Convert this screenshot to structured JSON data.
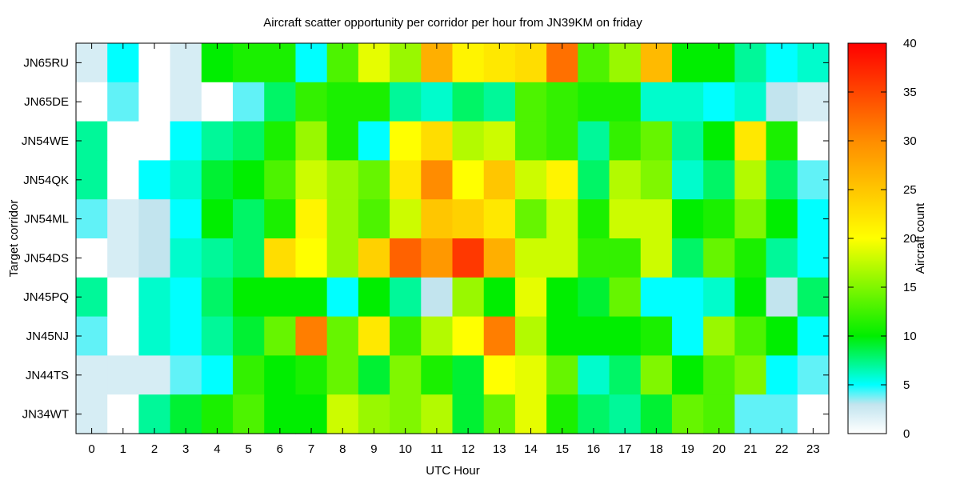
{
  "chart_data": {
    "type": "heatmap",
    "title": "Aircraft scatter opportunity per corridor per hour from JN39KM on friday",
    "xlabel": "UTC Hour",
    "ylabel": "Target corridor",
    "colorbar_label": "Aircraft count",
    "x": [
      "0",
      "1",
      "2",
      "3",
      "4",
      "5",
      "6",
      "7",
      "8",
      "9",
      "10",
      "11",
      "12",
      "13",
      "14",
      "15",
      "16",
      "17",
      "18",
      "19",
      "20",
      "21",
      "22",
      "23"
    ],
    "y": [
      "JN65RU",
      "JN65DE",
      "JN54WE",
      "JN54QK",
      "JN54ML",
      "JN54DS",
      "JN45PQ",
      "JN45NJ",
      "JN44TS",
      "JN34WT"
    ],
    "zlim": [
      0,
      40
    ],
    "colorbar_ticks": [
      0,
      5,
      10,
      15,
      20,
      25,
      30,
      35,
      40
    ],
    "color_stops": [
      {
        "v": 0,
        "c": "#ffffff"
      },
      {
        "v": 3,
        "c": "#c2e4ee"
      },
      {
        "v": 5,
        "c": "#00ffff"
      },
      {
        "v": 10,
        "c": "#00ee00"
      },
      {
        "v": 20,
        "c": "#ffff00"
      },
      {
        "v": 30,
        "c": "#ff8c00"
      },
      {
        "v": 40,
        "c": "#ff0000"
      }
    ],
    "values": [
      [
        2,
        5,
        0,
        2,
        10,
        11,
        11,
        5,
        13,
        19,
        16,
        27,
        21,
        22,
        23,
        32,
        13,
        16,
        26,
        10,
        10,
        7,
        5,
        6
      ],
      [
        0,
        4,
        0,
        2,
        0,
        4,
        8,
        12,
        11,
        11,
        7,
        6,
        8,
        7,
        13,
        12,
        11,
        11,
        6,
        6,
        5,
        6,
        3,
        2
      ],
      [
        7,
        0,
        0,
        5,
        7,
        8,
        11,
        16,
        11,
        5,
        20,
        23,
        17,
        18,
        13,
        12,
        7,
        12,
        14,
        7,
        10,
        22,
        11,
        0
      ],
      [
        7,
        0,
        5,
        6,
        9,
        10,
        13,
        18,
        16,
        14,
        22,
        30,
        20,
        25,
        18,
        21,
        8,
        17,
        15,
        6,
        8,
        17,
        8,
        4
      ],
      [
        4,
        2,
        3,
        5,
        10,
        8,
        11,
        21,
        16,
        13,
        18,
        25,
        24,
        22,
        14,
        18,
        11,
        18,
        18,
        10,
        11,
        15,
        10,
        5
      ],
      [
        0,
        2,
        3,
        6,
        7,
        8,
        23,
        20,
        16,
        24,
        33,
        29,
        36,
        27,
        18,
        18,
        12,
        12,
        18,
        8,
        14,
        11,
        7,
        5
      ],
      [
        7,
        0,
        6,
        5,
        8,
        10,
        10,
        10,
        5,
        10,
        7,
        3,
        16,
        10,
        19,
        10,
        9,
        14,
        5,
        5,
        6,
        10,
        3,
        8
      ],
      [
        4,
        0,
        6,
        5,
        7,
        9,
        14,
        31,
        14,
        22,
        12,
        17,
        20,
        31,
        17,
        10,
        10,
        10,
        11,
        5,
        16,
        13,
        10,
        5
      ],
      [
        2,
        2,
        2,
        4,
        5,
        12,
        10,
        11,
        14,
        9,
        15,
        11,
        9,
        20,
        19,
        14,
        6,
        8,
        15,
        10,
        13,
        15,
        5,
        4
      ],
      [
        2,
        0,
        7,
        9,
        11,
        13,
        10,
        10,
        18,
        16,
        15,
        17,
        9,
        14,
        19,
        11,
        8,
        7,
        9,
        14,
        13,
        4,
        4,
        0
      ]
    ]
  }
}
